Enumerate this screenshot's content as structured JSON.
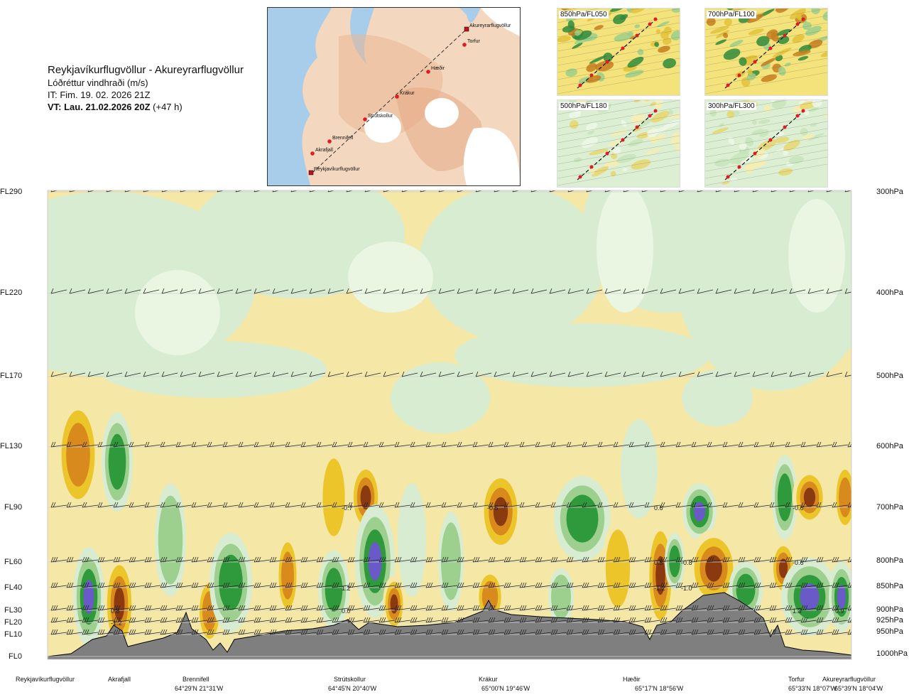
{
  "header": {
    "route": "Reykjavíkurflugvöllur - Akureyrarflugvöllur",
    "parameter": "Lóðréttur vindhraði (m/s)",
    "issue_time": "IT: Fim. 19. 02. 2026 21Z",
    "valid_time": "VT: Lau. 21.02.2026 20Z",
    "lead_time": "(+47 h)"
  },
  "map": {
    "waypoints": [
      "Akureyrarflugvöllur",
      "Torfur",
      "Hæðir",
      "Krákur",
      "Strútskollur",
      "Brennifell",
      "Akrafjall",
      "Reykjavíkurflugvöllur"
    ]
  },
  "mini_maps": [
    {
      "label": "850hPa/FL050"
    },
    {
      "label": "700hPa/FL100"
    },
    {
      "label": "500hPa/FL180"
    },
    {
      "label": "300hPa/FL300"
    }
  ],
  "levels": {
    "flight_levels": [
      "FL290",
      "FL220",
      "FL170",
      "FL130",
      "FL90",
      "FL60",
      "FL40",
      "FL30",
      "FL20",
      "FL10",
      "FL0"
    ],
    "pressure_levels": [
      "300hPa",
      "400hPa",
      "500hPa",
      "600hPa",
      "700hPa",
      "800hPa",
      "850hPa",
      "900hPa",
      "925hPa",
      "950hPa",
      "1000hPa"
    ]
  },
  "locations": [
    {
      "name": "Reykjavíkurflugvöllur",
      "coord": ""
    },
    {
      "name": "Akrafjall",
      "coord": ""
    },
    {
      "name": "Brennifell",
      "coord": "64°29'N 21°31'W"
    },
    {
      "name": "Strútskollur",
      "coord": "64°45'N 20°40'W"
    },
    {
      "name": "Krákur",
      "coord": "65°00'N 19°46'W"
    },
    {
      "name": "Hæðir",
      "coord": "65°17'N 18°56'W"
    },
    {
      "name": "Torfur",
      "coord": "65°33'N 18°07'W"
    },
    {
      "name": "Akureyrarflugvöllur",
      "coord": "65°39'N 18°04'W"
    }
  ],
  "chart_data": {
    "type": "heatmap",
    "title": "Lóðréttur vindhraði (m/s)",
    "xlabel": "",
    "ylabel": "",
    "colors": {
      "strong_down": "#8b3a0f",
      "down": "#d98a1c",
      "weak_down": "#ecc52a",
      "faint_down": "#f5e7a6",
      "faint_up": "#d7ecd0",
      "weak_up": "#9dcf8f",
      "up": "#2e9a3b",
      "strong_up": "#6a5ac8",
      "terrain": "#7f7f7f"
    },
    "value_labels": [
      {
        "text": "0.8",
        "location": "Akrafjall",
        "level": "FL30"
      },
      {
        "text": "-1.2",
        "location": "Akrafjall",
        "level": "FL20"
      },
      {
        "text": "0.0",
        "location": "Strútskollur",
        "level": "FL30"
      },
      {
        "text": "-0.7",
        "location": "Strútskollur",
        "level": "FL90"
      },
      {
        "text": "1.2",
        "location": "Strútskollur",
        "level": "FL40"
      },
      {
        "text": "-0.5",
        "location": "Krákur",
        "level": "FL90"
      },
      {
        "text": "0.6",
        "location": "Hæðir",
        "level": "FL90"
      },
      {
        "text": "0.5",
        "location": "Hæðir",
        "level": "FL60"
      },
      {
        "text": "-0.8",
        "location": "Hæðir",
        "level": "FL60"
      },
      {
        "text": "-1.2",
        "location": "Hæðir",
        "level": "FL40"
      },
      {
        "text": "-1.0",
        "location": "Hæðir",
        "level": "FL40"
      },
      {
        "text": "-0.6",
        "location": "Torfur",
        "level": "FL90"
      },
      {
        "text": "-0.6",
        "location": "Torfur",
        "level": "FL60"
      },
      {
        "text": "1.3",
        "location": "Torfur",
        "level": "FL30"
      },
      {
        "text": "0.9",
        "location": "Akureyrarflugvöllur",
        "level": "FL30"
      }
    ]
  }
}
